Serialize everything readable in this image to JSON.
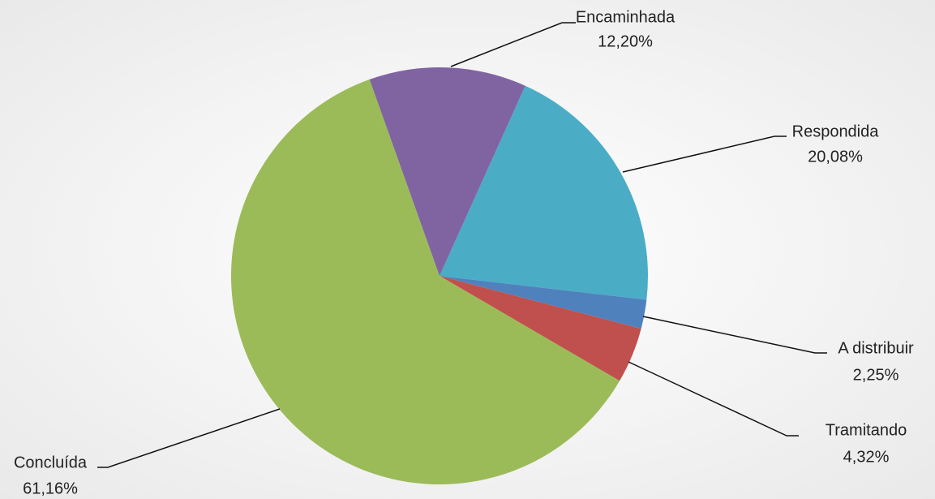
{
  "chart_data": {
    "type": "pie",
    "categories": [
      "Respondida",
      "A distribuir",
      "Tramitando",
      "Concluída",
      "Encaminhada"
    ],
    "values": [
      20.08,
      2.25,
      4.32,
      61.16,
      12.2
    ],
    "value_labels": [
      "20,08%",
      "2,25%",
      "4,32%",
      "61,16%",
      "12,20%"
    ],
    "colors": [
      "#4bacc6",
      "#4f81bd",
      "#c0504d",
      "#9bbb59",
      "#8064a2"
    ]
  }
}
